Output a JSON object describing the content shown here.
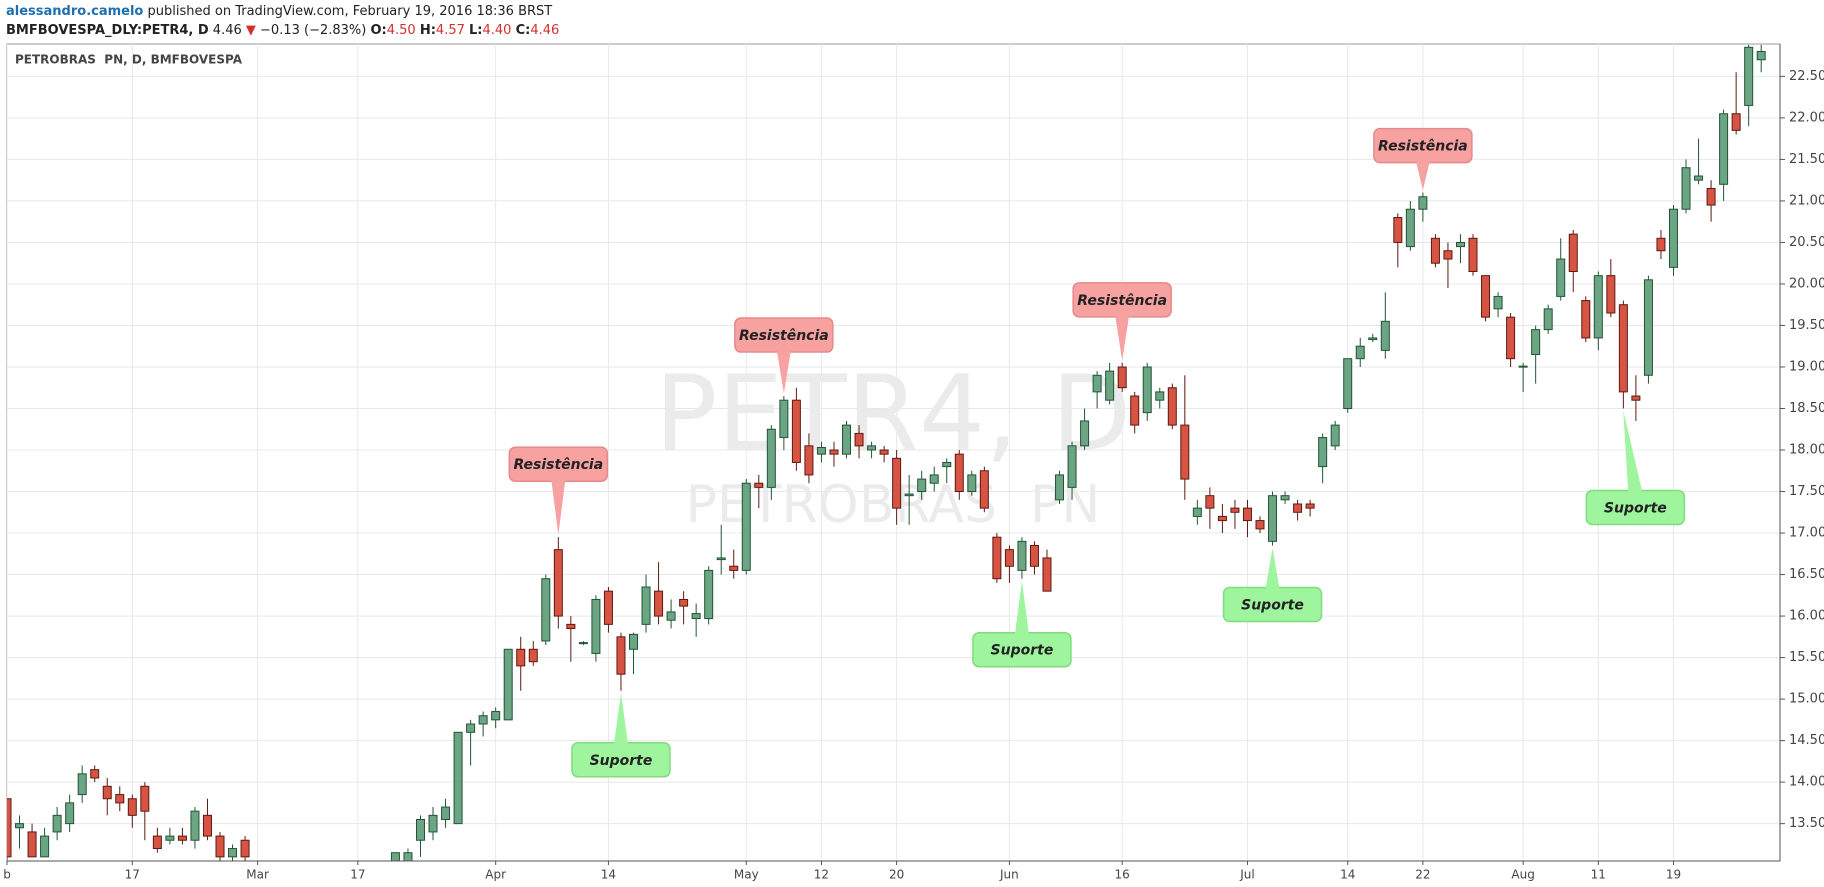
{
  "header": {
    "author": "alessandro.camelo",
    "published": " published on TradingView.com, February 19, 2016 18:36 BRST",
    "symbol": "BMFBOVESPA_DLY:PETR4, D",
    "last": "4.46",
    "arrow": "▼",
    "change": "−0.13 (−2.83%)",
    "open_label": "O:",
    "open": "4.50",
    "high_label": "H:",
    "high": "4.57",
    "low_label": "L:",
    "low": "4.40",
    "close_label": "C:",
    "close": "4.46"
  },
  "chart_data": {
    "type": "candlestick",
    "title": "PETROBRAS  PN, D, BMFBOVESPA",
    "watermark": {
      "symbol": "PETR4, D",
      "name": "PETROBRAS  PN"
    },
    "up_color": "#6ba583",
    "up_border": "#225437",
    "down_color": "#d75442",
    "down_border": "#5b1a13",
    "categories": [
      "b",
      null,
      null,
      null,
      null,
      null,
      null,
      null,
      null,
      null,
      "17",
      null,
      null,
      null,
      null,
      null,
      null,
      null,
      null,
      null,
      "Mar",
      null,
      null,
      null,
      null,
      null,
      null,
      null,
      "17",
      null,
      null,
      null,
      null,
      null,
      null,
      null,
      null,
      null,
      null,
      "Apr",
      null,
      null,
      null,
      null,
      null,
      null,
      null,
      null,
      "14",
      null,
      null,
      null,
      null,
      null,
      null,
      null,
      null,
      null,
      null,
      "May",
      null,
      null,
      null,
      null,
      null,
      "12",
      null,
      null,
      null,
      null,
      null,
      "20",
      null,
      null,
      null,
      null,
      null,
      null,
      null,
      null,
      "Jun",
      null,
      null,
      null,
      null,
      null,
      null,
      null,
      null,
      "16",
      null,
      null,
      null,
      null,
      null,
      null,
      null,
      null,
      null,
      "Jul",
      null,
      null,
      null,
      null,
      null,
      null,
      null,
      "14",
      null,
      null,
      null,
      null,
      null,
      "22",
      null,
      null,
      null,
      null,
      null,
      null,
      null,
      "Aug",
      null,
      null,
      null,
      null,
      null,
      "11",
      null,
      null,
      null,
      null,
      null,
      "19",
      null,
      null,
      null,
      null,
      null,
      null,
      null
    ],
    "open": [
      13.8,
      13.45,
      13.4,
      13.1,
      13.4,
      13.5,
      13.85,
      14.15,
      13.95,
      13.85,
      13.8,
      13.95,
      13.35,
      13.3,
      13.35,
      13.3,
      13.6,
      13.35,
      13.1,
      13.3,
      null,
      null,
      null,
      null,
      null,
      null,
      null,
      null,
      null,
      null,
      null,
      13.05,
      13.05,
      13.3,
      13.4,
      13.55,
      13.5,
      14.6,
      14.7,
      14.75,
      14.75,
      15.6,
      15.6,
      15.7,
      16.8,
      15.9,
      15.67,
      15.55,
      16.3,
      15.75,
      15.6,
      15.9,
      16.3,
      15.95,
      16.2,
      15.97,
      15.97,
      16.68,
      16.6,
      16.55,
      17.6,
      17.55,
      18.15,
      18.6,
      18.05,
      17.95,
      18.0,
      17.95,
      18.2,
      18.0,
      18.0,
      17.9,
      17.45,
      17.5,
      17.6,
      17.8,
      17.95,
      17.5,
      17.75,
      16.95,
      16.8,
      16.55,
      16.85,
      16.7,
      17.4,
      17.55,
      18.05,
      18.7,
      18.6,
      19.0,
      18.65,
      18.45,
      18.6,
      18.75,
      18.3,
      17.2,
      17.45,
      17.2,
      17.3,
      17.3,
      17.15,
      16.9,
      17.4,
      17.35,
      17.35,
      17.8,
      18.05,
      18.5,
      19.1,
      19.33,
      19.2,
      20.8,
      20.45,
      20.9,
      20.55,
      20.4,
      20.45,
      20.55,
      20.1,
      19.7,
      19.6,
      19.0,
      19.15,
      19.45,
      19.85,
      20.6,
      19.8,
      19.35,
      20.1,
      19.75,
      18.65,
      18.9,
      20.55,
      20.2,
      20.9,
      21.25,
      21.15,
      21.2,
      22.05,
      22.15,
      22.7
    ],
    "high": [
      13.8,
      13.6,
      13.5,
      13.45,
      13.7,
      13.85,
      14.2,
      14.2,
      14.05,
      13.95,
      13.85,
      14.0,
      13.45,
      13.45,
      13.45,
      13.7,
      13.8,
      13.4,
      13.25,
      13.35,
      null,
      null,
      null,
      null,
      null,
      null,
      null,
      null,
      null,
      null,
      null,
      13.15,
      13.2,
      13.6,
      13.7,
      13.8,
      14.6,
      14.75,
      14.85,
      14.9,
      15.6,
      15.75,
      15.7,
      16.5,
      16.95,
      16.0,
      15.7,
      16.25,
      16.35,
      15.8,
      15.8,
      16.5,
      16.65,
      16.2,
      16.3,
      16.15,
      16.6,
      17.1,
      16.8,
      17.65,
      17.7,
      18.3,
      18.65,
      18.75,
      18.2,
      18.1,
      18.1,
      18.35,
      18.3,
      18.1,
      18.05,
      18.0,
      17.7,
      17.75,
      17.8,
      17.9,
      18.0,
      17.75,
      17.8,
      17.0,
      16.85,
      16.95,
      16.9,
      16.8,
      17.75,
      18.1,
      18.5,
      18.95,
      19.05,
      19.05,
      18.7,
      19.05,
      18.75,
      18.8,
      18.9,
      17.4,
      17.55,
      17.35,
      17.4,
      17.4,
      17.2,
      17.5,
      17.5,
      17.4,
      17.4,
      18.2,
      18.35,
      19.1,
      19.35,
      19.4,
      19.9,
      20.85,
      21.0,
      21.1,
      20.6,
      20.5,
      20.6,
      20.6,
      20.1,
      19.9,
      19.65,
      19.05,
      19.5,
      19.75,
      20.55,
      20.65,
      19.85,
      20.15,
      20.3,
      19.8,
      18.9,
      20.1,
      20.65,
      20.95,
      21.5,
      21.75,
      21.25,
      22.1,
      22.55,
      22.88,
      22.88
    ],
    "low": [
      13.05,
      13.2,
      13.1,
      13.1,
      13.3,
      13.4,
      13.75,
      14.0,
      13.6,
      13.65,
      13.45,
      13.3,
      13.15,
      13.25,
      13.25,
      13.2,
      13.3,
      13.05,
      13.05,
      13.05,
      null,
      null,
      null,
      null,
      null,
      null,
      null,
      null,
      null,
      null,
      null,
      13.05,
      13.05,
      13.1,
      13.3,
      13.45,
      13.5,
      14.2,
      14.55,
      14.65,
      14.75,
      15.1,
      15.4,
      15.65,
      15.85,
      15.45,
      15.65,
      15.45,
      15.8,
      15.1,
      15.3,
      15.8,
      15.9,
      15.85,
      15.9,
      15.75,
      15.9,
      16.5,
      16.45,
      16.5,
      17.3,
      17.4,
      18.0,
      17.75,
      17.6,
      17.85,
      17.8,
      17.9,
      17.9,
      17.9,
      17.85,
      17.1,
      17.1,
      17.4,
      17.5,
      17.6,
      17.4,
      17.45,
      17.25,
      16.4,
      16.4,
      16.45,
      16.5,
      16.3,
      17.35,
      17.4,
      18.0,
      18.5,
      18.55,
      18.7,
      18.2,
      18.35,
      18.5,
      18.25,
      17.4,
      17.1,
      17.05,
      17.0,
      17.05,
      16.95,
      17.0,
      16.85,
      17.35,
      17.15,
      17.2,
      17.6,
      18.0,
      18.45,
      19.0,
      19.3,
      19.1,
      20.2,
      20.4,
      20.75,
      20.2,
      19.95,
      20.25,
      20.1,
      19.55,
      19.6,
      19.0,
      18.7,
      18.8,
      19.4,
      19.8,
      19.9,
      19.3,
      19.2,
      19.6,
      18.5,
      18.35,
      18.8,
      20.3,
      20.1,
      20.85,
      21.2,
      20.75,
      21.0,
      21.8,
      21.9,
      22.55
    ],
    "close": [
      13.1,
      13.5,
      13.1,
      13.35,
      13.6,
      13.75,
      14.1,
      14.05,
      13.8,
      13.75,
      13.6,
      13.65,
      13.2,
      13.35,
      13.3,
      13.65,
      13.35,
      13.1,
      13.2,
      13.1,
      null,
      null,
      null,
      null,
      null,
      null,
      null,
      null,
      null,
      null,
      null,
      13.15,
      13.15,
      13.55,
      13.6,
      13.7,
      14.6,
      14.7,
      14.8,
      14.85,
      15.6,
      15.4,
      15.45,
      16.45,
      16.0,
      15.85,
      15.68,
      16.2,
      15.9,
      15.3,
      15.78,
      16.35,
      16.0,
      16.05,
      16.12,
      16.03,
      16.55,
      16.7,
      16.55,
      17.6,
      17.55,
      18.25,
      18.6,
      17.85,
      17.7,
      18.03,
      17.95,
      18.3,
      18.05,
      18.05,
      17.95,
      17.3,
      17.47,
      17.65,
      17.7,
      17.85,
      17.5,
      17.7,
      17.3,
      16.45,
      16.6,
      16.9,
      16.6,
      16.3,
      17.7,
      18.05,
      18.35,
      18.9,
      18.95,
      18.75,
      18.3,
      19.0,
      18.7,
      18.3,
      17.65,
      17.3,
      17.3,
      17.15,
      17.25,
      17.15,
      17.05,
      17.45,
      17.45,
      17.25,
      17.3,
      18.15,
      18.3,
      19.1,
      19.25,
      19.35,
      19.55,
      20.5,
      20.9,
      21.05,
      20.25,
      20.3,
      20.5,
      20.15,
      19.6,
      19.85,
      19.1,
      19.01,
      19.45,
      19.7,
      20.3,
      20.15,
      19.35,
      20.1,
      19.65,
      18.7,
      18.6,
      20.05,
      20.4,
      20.9,
      21.4,
      21.3,
      20.95,
      22.05,
      21.85,
      22.85,
      22.8
    ],
    "ylim": [
      13.05,
      22.89
    ],
    "yticks": [
      {
        "value": 13.5,
        "label": "13.50"
      },
      {
        "value": 14,
        "label": "14.00"
      },
      {
        "value": 14.5,
        "label": "14.50"
      },
      {
        "value": 15,
        "label": "15.00"
      },
      {
        "value": 15.5,
        "label": "15.50"
      },
      {
        "value": 16,
        "label": "16.00"
      },
      {
        "value": 16.5,
        "label": "16.50"
      },
      {
        "value": 17,
        "label": "17.00"
      },
      {
        "value": 17.5,
        "label": "17.50"
      },
      {
        "value": 18,
        "label": "18.00"
      },
      {
        "value": 18.5,
        "label": "18.50"
      },
      {
        "value": 19,
        "label": "19.00"
      },
      {
        "value": 19.5,
        "label": "19.50"
      },
      {
        "value": 20,
        "label": "20.00"
      },
      {
        "value": 20.5,
        "label": "20.50"
      },
      {
        "value": 21,
        "label": "21.00"
      },
      {
        "value": 21.5,
        "label": "21.50"
      },
      {
        "value": 22,
        "label": "22.00"
      },
      {
        "value": 22.5,
        "label": "22.50"
      }
    ],
    "grid": true,
    "annotations": [
      {
        "text": "Resistência",
        "kind": "resistance"
      },
      {
        "text": "Resistência",
        "kind": "resistance"
      },
      {
        "text": "Resistência",
        "kind": "resistance"
      },
      {
        "text": "Resistência",
        "kind": "resistance"
      },
      {
        "text": "Suporte",
        "kind": "support"
      },
      {
        "text": "Suporte",
        "kind": "support"
      },
      {
        "text": "Suporte",
        "kind": "support"
      },
      {
        "text": "Suporte",
        "kind": "support"
      }
    ]
  }
}
